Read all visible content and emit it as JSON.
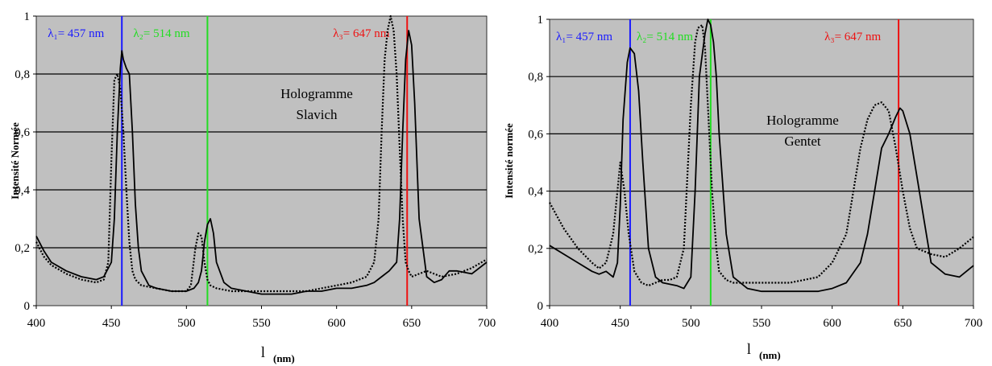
{
  "chart_data": [
    {
      "type": "line",
      "title": "",
      "xlabel_symbol": "l",
      "xlabel_unit": "(nm)",
      "ylabel": "Intensité Normée",
      "xlim": [
        400,
        700
      ],
      "ylim": [
        0,
        1
      ],
      "x_ticks": [
        "400",
        "450",
        "500",
        "550",
        "600",
        "650",
        "700"
      ],
      "y_ticks": [
        "0",
        "0,2",
        "0,4",
        "0,6",
        "0,8",
        "1"
      ],
      "grid": "horizontal",
      "annotation": [
        "Hologramme",
        "Slavich"
      ],
      "laser_lines": [
        {
          "lambda": 457,
          "label": "λ₁= 457 nm",
          "color": "#1a1aff"
        },
        {
          "lambda": 514,
          "label": "λ₂= 514 nm",
          "color": "#22dd22"
        },
        {
          "lambda": 647,
          "label": "λ₃= 647 nm",
          "color": "#ee1111"
        }
      ],
      "series": [
        {
          "style": "solid",
          "x": [
            400,
            405,
            410,
            420,
            430,
            440,
            445,
            450,
            452,
            454,
            456,
            457,
            458,
            460,
            462,
            464,
            466,
            468,
            470,
            475,
            480,
            490,
            500,
            505,
            508,
            510,
            512,
            514,
            516,
            518,
            520,
            525,
            530,
            540,
            550,
            560,
            570,
            580,
            590,
            600,
            610,
            620,
            625,
            630,
            635,
            640,
            642,
            644,
            646,
            648,
            650,
            652,
            655,
            660,
            665,
            670,
            675,
            680,
            690,
            700
          ],
          "y": [
            0.24,
            0.19,
            0.15,
            0.12,
            0.1,
            0.09,
            0.1,
            0.15,
            0.3,
            0.6,
            0.82,
            0.88,
            0.85,
            0.82,
            0.8,
            0.6,
            0.35,
            0.2,
            0.12,
            0.07,
            0.06,
            0.05,
            0.05,
            0.06,
            0.08,
            0.12,
            0.22,
            0.28,
            0.3,
            0.25,
            0.15,
            0.08,
            0.06,
            0.05,
            0.04,
            0.04,
            0.04,
            0.05,
            0.05,
            0.06,
            0.06,
            0.07,
            0.08,
            0.1,
            0.12,
            0.15,
            0.3,
            0.6,
            0.85,
            0.95,
            0.9,
            0.7,
            0.3,
            0.1,
            0.08,
            0.09,
            0.12,
            0.12,
            0.11,
            0.15
          ]
        },
        {
          "style": "dotted",
          "x": [
            400,
            405,
            410,
            420,
            430,
            440,
            445,
            448,
            450,
            452,
            454,
            456,
            458,
            460,
            462,
            464,
            466,
            470,
            480,
            490,
            500,
            503,
            506,
            508,
            510,
            512,
            514,
            516,
            520,
            530,
            540,
            550,
            560,
            570,
            580,
            590,
            600,
            610,
            620,
            625,
            628,
            630,
            632,
            634,
            636,
            638,
            640,
            642,
            644,
            646,
            648,
            650,
            655,
            660,
            670,
            680,
            690,
            700
          ],
          "y": [
            0.22,
            0.17,
            0.14,
            0.11,
            0.09,
            0.08,
            0.09,
            0.15,
            0.5,
            0.78,
            0.8,
            0.75,
            0.6,
            0.4,
            0.22,
            0.12,
            0.09,
            0.07,
            0.06,
            0.05,
            0.05,
            0.07,
            0.2,
            0.25,
            0.24,
            0.15,
            0.09,
            0.07,
            0.06,
            0.05,
            0.05,
            0.05,
            0.05,
            0.05,
            0.05,
            0.06,
            0.07,
            0.08,
            0.1,
            0.15,
            0.3,
            0.6,
            0.85,
            0.95,
            1.0,
            0.95,
            0.8,
            0.55,
            0.3,
            0.15,
            0.12,
            0.1,
            0.11,
            0.12,
            0.1,
            0.11,
            0.13,
            0.16
          ]
        }
      ]
    },
    {
      "type": "line",
      "title": "",
      "xlabel_symbol": "l",
      "xlabel_unit": "(nm)",
      "ylabel": "Intensité normée",
      "xlim": [
        400,
        700
      ],
      "ylim": [
        0,
        1
      ],
      "x_ticks": [
        "400",
        "450",
        "500",
        "550",
        "600",
        "650",
        "700"
      ],
      "y_ticks": [
        "0",
        "0,2",
        "0,4",
        "0,6",
        "0,8",
        "1"
      ],
      "grid": "horizontal",
      "annotation": [
        "Hologramme",
        "Gentet"
      ],
      "laser_lines": [
        {
          "lambda": 457,
          "label": "λ₁= 457 nm",
          "color": "#1a1aff"
        },
        {
          "lambda": 514,
          "label": "λ₂= 514 nm",
          "color": "#22dd22"
        },
        {
          "lambda": 647,
          "label": "λ₃= 647 nm",
          "color": "#ee1111"
        }
      ],
      "series": [
        {
          "style": "solid",
          "x": [
            400,
            410,
            420,
            430,
            435,
            440,
            445,
            448,
            450,
            452,
            455,
            457,
            460,
            463,
            466,
            470,
            475,
            480,
            490,
            495,
            500,
            503,
            506,
            510,
            512,
            514,
            516,
            518,
            520,
            525,
            530,
            540,
            550,
            560,
            570,
            580,
            590,
            600,
            610,
            620,
            625,
            630,
            635,
            640,
            645,
            648,
            650,
            655,
            660,
            665,
            670,
            680,
            690,
            700
          ],
          "y": [
            0.21,
            0.18,
            0.15,
            0.12,
            0.11,
            0.12,
            0.1,
            0.15,
            0.35,
            0.65,
            0.85,
            0.9,
            0.88,
            0.75,
            0.5,
            0.2,
            0.1,
            0.08,
            0.07,
            0.06,
            0.1,
            0.4,
            0.8,
            0.95,
            1.0,
            0.98,
            0.92,
            0.8,
            0.6,
            0.25,
            0.1,
            0.06,
            0.05,
            0.05,
            0.05,
            0.05,
            0.05,
            0.06,
            0.08,
            0.15,
            0.25,
            0.4,
            0.55,
            0.6,
            0.66,
            0.69,
            0.68,
            0.6,
            0.45,
            0.3,
            0.15,
            0.11,
            0.1,
            0.14
          ]
        },
        {
          "style": "dotted",
          "x": [
            400,
            410,
            420,
            430,
            435,
            440,
            445,
            448,
            450,
            453,
            456,
            460,
            465,
            470,
            475,
            480,
            485,
            490,
            495,
            500,
            503,
            505,
            508,
            510,
            512,
            515,
            518,
            520,
            525,
            530,
            540,
            550,
            560,
            570,
            580,
            590,
            600,
            610,
            615,
            620,
            625,
            630,
            635,
            640,
            645,
            650,
            655,
            660,
            670,
            680,
            690,
            700
          ],
          "y": [
            0.36,
            0.27,
            0.2,
            0.15,
            0.13,
            0.15,
            0.25,
            0.4,
            0.5,
            0.4,
            0.25,
            0.12,
            0.08,
            0.07,
            0.08,
            0.09,
            0.09,
            0.1,
            0.2,
            0.7,
            0.92,
            0.97,
            0.98,
            0.9,
            0.7,
            0.4,
            0.2,
            0.12,
            0.09,
            0.08,
            0.08,
            0.08,
            0.08,
            0.08,
            0.09,
            0.1,
            0.15,
            0.25,
            0.4,
            0.55,
            0.65,
            0.7,
            0.71,
            0.68,
            0.55,
            0.4,
            0.27,
            0.2,
            0.18,
            0.17,
            0.2,
            0.24
          ]
        }
      ]
    }
  ]
}
